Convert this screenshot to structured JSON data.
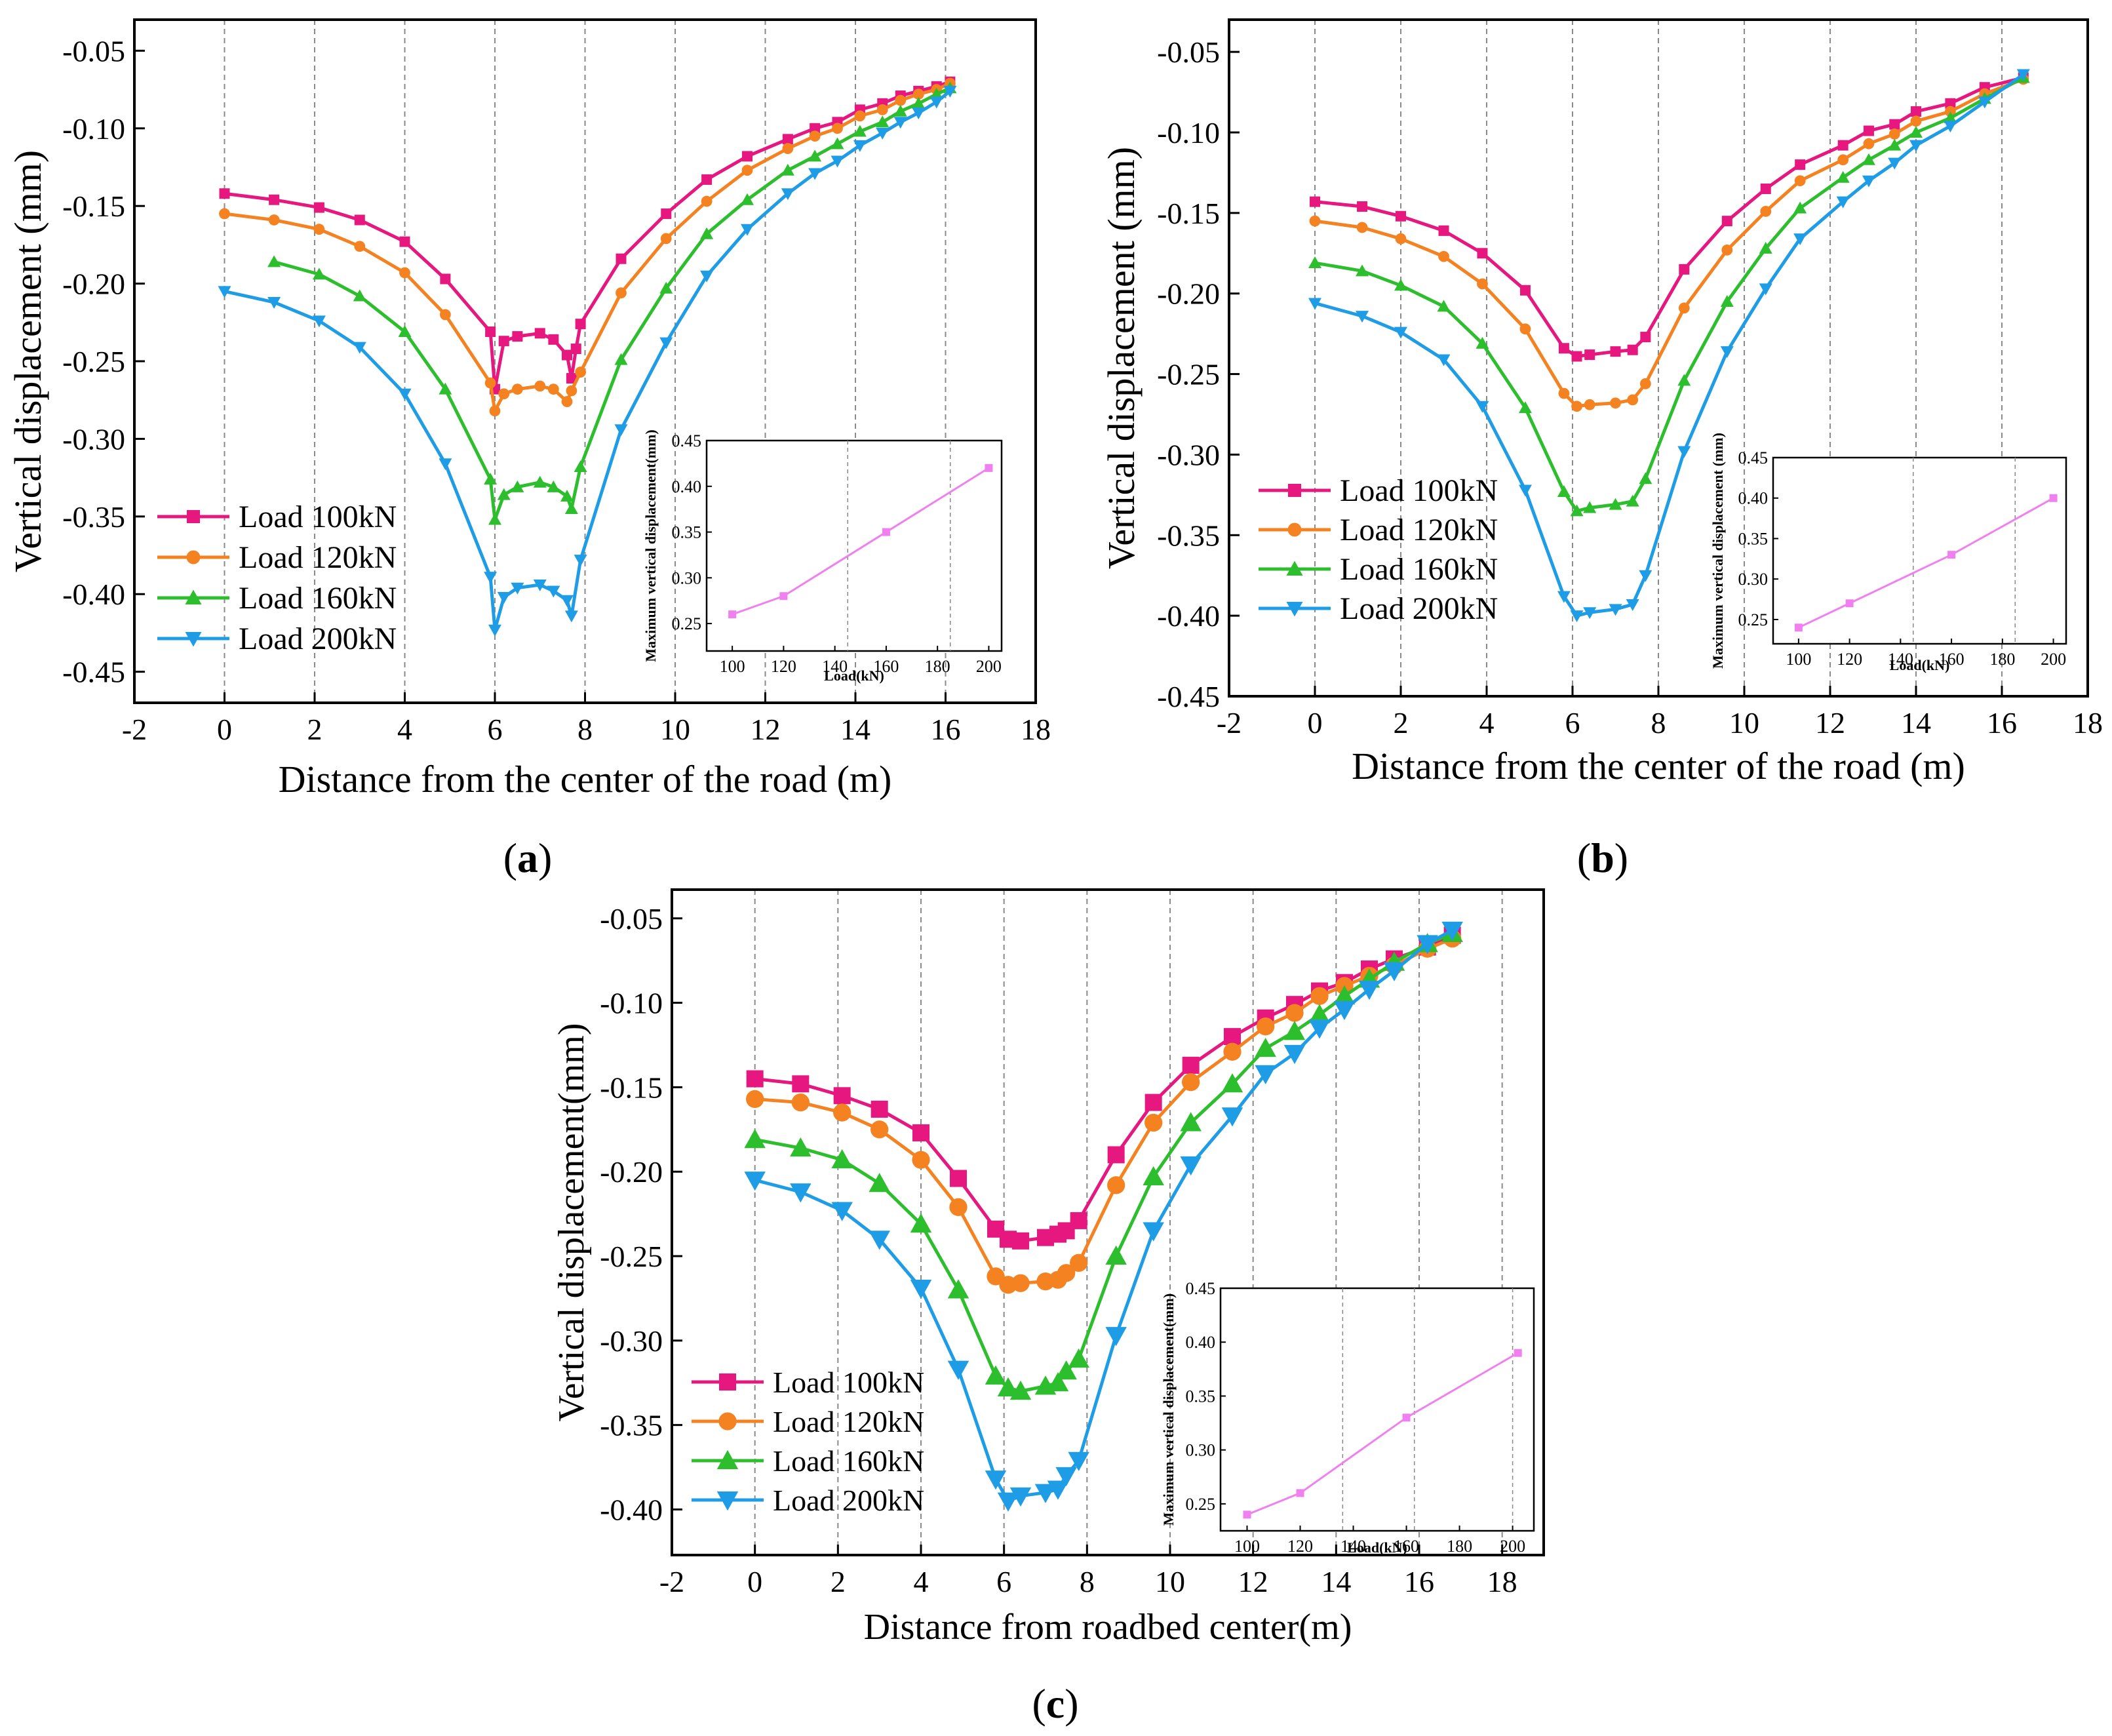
{
  "colors": {
    "Load 100kN": "#E6177F",
    "Load 120kN": "#F58220",
    "Load 160kN": "#2DBE2D",
    "Load 200kN": "#1E9DE6",
    "inset": "#F080F0"
  },
  "panel_labels": [
    "a",
    "b",
    "c"
  ],
  "chart_data": [
    {
      "type": "line",
      "panel": "a",
      "xlabel": "Distance from the center of the road (m)",
      "ylabel": "Vertical displacement (mm)",
      "xlim": [
        -2,
        18
      ],
      "ylim": [
        -0.47,
        -0.03
      ],
      "xticks": [
        -2,
        0,
        2,
        4,
        6,
        8,
        10,
        12,
        14,
        16,
        18
      ],
      "xtick_labels": [
        "-2",
        "0",
        "2",
        "4",
        "6",
        "8",
        "10",
        "12",
        "14",
        "16",
        "18"
      ],
      "yticks": [
        -0.45,
        -0.4,
        -0.35,
        -0.3,
        -0.25,
        -0.2,
        -0.15,
        -0.1,
        -0.05
      ],
      "ytick_labels": [
        "-0.45",
        "-0.40",
        "-0.35",
        "-0.30",
        "-0.25",
        "-0.20",
        "-0.15",
        "-0.10",
        "-0.05"
      ],
      "grid_x": [
        0,
        2,
        4,
        6,
        8,
        10,
        12,
        14,
        16
      ],
      "legend_position": "lower-left",
      "series": [
        {
          "name": "Load 100kN",
          "marker": "square",
          "x": [
            0,
            1.1,
            2.1,
            3,
            4,
            4.9,
            5.9,
            6,
            6.2,
            6.5,
            7,
            7.3,
            7.6,
            7.7,
            7.8,
            7.9,
            8.8,
            9.8,
            10.7,
            11.6,
            12.5,
            13.1,
            13.6,
            14.1,
            14.6,
            15,
            15.4,
            15.8,
            16.1
          ],
          "y": [
            -0.142,
            -0.146,
            -0.151,
            -0.159,
            -0.173,
            -0.197,
            -0.231,
            -0.268,
            -0.237,
            -0.234,
            -0.232,
            -0.236,
            -0.246,
            -0.261,
            -0.242,
            -0.226,
            -0.184,
            -0.155,
            -0.133,
            -0.118,
            -0.107,
            -0.1,
            -0.096,
            -0.088,
            -0.084,
            -0.079,
            -0.076,
            -0.073,
            -0.07
          ]
        },
        {
          "name": "Load 120kN",
          "marker": "circle",
          "x": [
            0,
            1.1,
            2.1,
            3,
            4,
            4.9,
            5.9,
            6,
            6.2,
            6.5,
            7,
            7.3,
            7.6,
            7.7,
            7.9,
            8.8,
            9.8,
            10.7,
            11.6,
            12.5,
            13.1,
            13.6,
            14.1,
            14.6,
            15,
            15.4,
            15.8,
            16.1
          ],
          "y": [
            -0.155,
            -0.159,
            -0.165,
            -0.176,
            -0.193,
            -0.22,
            -0.264,
            -0.282,
            -0.271,
            -0.268,
            -0.266,
            -0.268,
            -0.276,
            -0.269,
            -0.257,
            -0.206,
            -0.171,
            -0.147,
            -0.127,
            -0.113,
            -0.105,
            -0.1,
            -0.092,
            -0.088,
            -0.082,
            -0.078,
            -0.075,
            -0.071
          ]
        },
        {
          "name": "Load 160kN",
          "marker": "triangle-up",
          "x": [
            1.1,
            2.1,
            3,
            4,
            4.9,
            5.9,
            6,
            6.2,
            6.5,
            7,
            7.3,
            7.6,
            7.7,
            7.9,
            8.8,
            9.8,
            10.7,
            11.6,
            12.5,
            13.1,
            13.6,
            14.1,
            14.6,
            15,
            15.4,
            15.8,
            16.1
          ],
          "y": [
            -0.186,
            -0.194,
            -0.208,
            -0.231,
            -0.268,
            -0.326,
            -0.352,
            -0.336,
            -0.331,
            -0.328,
            -0.331,
            -0.337,
            -0.345,
            -0.318,
            -0.249,
            -0.203,
            -0.168,
            -0.146,
            -0.127,
            -0.118,
            -0.11,
            -0.102,
            -0.096,
            -0.089,
            -0.084,
            -0.078,
            -0.074
          ]
        },
        {
          "name": "Load 200kN",
          "marker": "triangle-down",
          "x": [
            0,
            1.1,
            2.1,
            3,
            4,
            4.9,
            5.9,
            6,
            6.2,
            6.5,
            7,
            7.3,
            7.6,
            7.7,
            7.9,
            8.8,
            9.8,
            10.7,
            11.6,
            12.5,
            13.1,
            13.6,
            14.1,
            14.6,
            15,
            15.4,
            15.8,
            16.1
          ],
          "y": [
            -0.205,
            -0.212,
            -0.224,
            -0.241,
            -0.271,
            -0.316,
            -0.389,
            -0.423,
            -0.402,
            -0.396,
            -0.394,
            -0.398,
            -0.404,
            -0.414,
            -0.378,
            -0.294,
            -0.238,
            -0.195,
            -0.165,
            -0.142,
            -0.129,
            -0.121,
            -0.111,
            -0.103,
            -0.096,
            -0.09,
            -0.083,
            -0.076
          ]
        }
      ],
      "inset": {
        "type": "line",
        "xlabel": "Load(kN)",
        "ylabel": "Maximum vertical displacement(mm)",
        "xlim": [
          90,
          205
        ],
        "ylim": [
          0.22,
          0.45
        ],
        "xticks": [
          100,
          120,
          140,
          160,
          180,
          200
        ],
        "xtick_labels": [
          "100",
          "120",
          "140",
          "160",
          "180",
          "200"
        ],
        "yticks": [
          0.25,
          0.3,
          0.35,
          0.4,
          0.45
        ],
        "ytick_labels": [
          "0.25",
          "0.30",
          "0.35",
          "0.40",
          "0.45"
        ],
        "grid_x": [
          145,
          185
        ],
        "x": [
          100,
          120,
          160,
          200
        ],
        "y": [
          0.26,
          0.28,
          0.35,
          0.42
        ]
      }
    },
    {
      "type": "line",
      "panel": "b",
      "xlabel": "Distance from the center of the road (m)",
      "ylabel": "Vertical displacement (mm)",
      "xlim": [
        -2,
        18
      ],
      "ylim": [
        -0.45,
        -0.03
      ],
      "xticks": [
        -2,
        0,
        2,
        4,
        6,
        8,
        10,
        12,
        14,
        16,
        18
      ],
      "xtick_labels": [
        "-2",
        "0",
        "2",
        "4",
        "6",
        "8",
        "10",
        "12",
        "14",
        "16",
        "18"
      ],
      "yticks": [
        -0.45,
        -0.4,
        -0.35,
        -0.3,
        -0.25,
        -0.2,
        -0.15,
        -0.1,
        -0.05
      ],
      "ytick_labels": [
        "-0.45",
        "-0.40",
        "-0.35",
        "-0.30",
        "-0.25",
        "-0.20",
        "-0.15",
        "-0.10",
        "-0.05"
      ],
      "grid_x": [
        0,
        2,
        4,
        6,
        8,
        10,
        12,
        14,
        16
      ],
      "legend_position": "center-left",
      "series": [
        {
          "name": "Load 100kN",
          "marker": "square",
          "x": [
            0,
            1.1,
            2,
            3,
            3.9,
            4.9,
            5.8,
            6.1,
            6.4,
            7,
            7.4,
            7.7,
            8.6,
            9.6,
            10.5,
            11.3,
            12.3,
            12.9,
            13.5,
            14,
            14.8,
            15.6,
            16.5
          ],
          "y": [
            -0.143,
            -0.146,
            -0.152,
            -0.161,
            -0.175,
            -0.198,
            -0.234,
            -0.239,
            -0.238,
            -0.236,
            -0.235,
            -0.227,
            -0.185,
            -0.155,
            -0.135,
            -0.12,
            -0.108,
            -0.099,
            -0.095,
            -0.087,
            -0.082,
            -0.072,
            -0.066
          ]
        },
        {
          "name": "Load 120kN",
          "marker": "circle",
          "x": [
            0,
            1.1,
            2,
            3,
            3.9,
            4.9,
            5.8,
            6.1,
            6.4,
            7,
            7.4,
            7.7,
            8.6,
            9.6,
            10.5,
            11.3,
            12.3,
            12.9,
            13.5,
            14,
            14.8,
            15.6,
            16.5
          ],
          "y": [
            -0.155,
            -0.159,
            -0.166,
            -0.177,
            -0.194,
            -0.222,
            -0.262,
            -0.27,
            -0.269,
            -0.268,
            -0.266,
            -0.256,
            -0.209,
            -0.173,
            -0.149,
            -0.13,
            -0.117,
            -0.107,
            -0.101,
            -0.093,
            -0.087,
            -0.076,
            -0.067
          ]
        },
        {
          "name": "Load 160kN",
          "marker": "triangle-up",
          "x": [
            0,
            1.1,
            2,
            3,
            3.9,
            4.9,
            5.8,
            6.1,
            6.4,
            7,
            7.4,
            7.7,
            8.6,
            9.6,
            10.5,
            11.3,
            12.3,
            12.9,
            13.5,
            14,
            14.8,
            15.6,
            16.5
          ],
          "y": [
            -0.181,
            -0.186,
            -0.195,
            -0.208,
            -0.231,
            -0.271,
            -0.323,
            -0.335,
            -0.333,
            -0.331,
            -0.329,
            -0.315,
            -0.254,
            -0.205,
            -0.172,
            -0.147,
            -0.128,
            -0.117,
            -0.108,
            -0.1,
            -0.091,
            -0.079,
            -0.066
          ]
        },
        {
          "name": "Load 200kN",
          "marker": "triangle-down",
          "x": [
            0,
            1.1,
            2,
            3,
            3.9,
            4.9,
            5.8,
            6.1,
            6.4,
            7,
            7.4,
            7.7,
            8.6,
            9.6,
            10.5,
            11.3,
            12.3,
            12.9,
            13.5,
            14,
            14.8,
            15.6,
            16.5
          ],
          "y": [
            -0.206,
            -0.214,
            -0.224,
            -0.241,
            -0.27,
            -0.322,
            -0.388,
            -0.4,
            -0.398,
            -0.396,
            -0.393,
            -0.375,
            -0.298,
            -0.236,
            -0.197,
            -0.166,
            -0.143,
            -0.13,
            -0.119,
            -0.108,
            -0.096,
            -0.081,
            -0.064
          ]
        }
      ],
      "inset": {
        "type": "line",
        "xlabel": "Load(kN)",
        "ylabel": "Maximum vertical displacement (mm)",
        "xlim": [
          90,
          205
        ],
        "ylim": [
          0.22,
          0.45
        ],
        "xticks": [
          100,
          120,
          140,
          160,
          180,
          200
        ],
        "xtick_labels": [
          "100",
          "120",
          "140",
          "160",
          "180",
          "200"
        ],
        "yticks": [
          0.25,
          0.3,
          0.35,
          0.4,
          0.45
        ],
        "ytick_labels": [
          "0.25",
          "0.30",
          "0.35",
          "0.40",
          "0.45"
        ],
        "grid_x": [
          145,
          185
        ],
        "x": [
          100,
          120,
          160,
          200
        ],
        "y": [
          0.24,
          0.27,
          0.33,
          0.4
        ]
      }
    },
    {
      "type": "line",
      "panel": "c",
      "xlabel": "Distance from roadbed center(m)",
      "ylabel": "Vertical displacement(mm)",
      "xlim": [
        -2,
        19
      ],
      "ylim": [
        -0.427,
        -0.033
      ],
      "xticks": [
        -2,
        0,
        2,
        4,
        6,
        8,
        10,
        12,
        14,
        16,
        18
      ],
      "xtick_labels": [
        "-2",
        "0",
        "2",
        "4",
        "6",
        "8",
        "10",
        "12",
        "14",
        "16",
        "18"
      ],
      "yticks": [
        -0.4,
        -0.35,
        -0.3,
        -0.25,
        -0.2,
        -0.15,
        -0.1,
        -0.05
      ],
      "ytick_labels": [
        "-0.40",
        "-0.35",
        "-0.30",
        "-0.25",
        "-0.20",
        "-0.15",
        "-0.10",
        "-0.05"
      ],
      "grid_x": [
        0,
        2,
        4,
        6,
        8,
        10,
        12,
        14,
        16,
        18
      ],
      "legend_position": "lower-left",
      "series": [
        {
          "name": "Load 100kN",
          "marker": "square",
          "x": [
            0,
            1.1,
            2.1,
            3,
            4,
            4.9,
            5.8,
            6.1,
            6.4,
            7,
            7.3,
            7.5,
            7.8,
            8.7,
            9.6,
            10.5,
            11.5,
            12.3,
            13,
            13.6,
            14.2,
            14.8,
            15.4,
            16.2,
            16.8
          ],
          "y": [
            -0.145,
            -0.148,
            -0.155,
            -0.163,
            -0.177,
            -0.204,
            -0.234,
            -0.24,
            -0.241,
            -0.239,
            -0.237,
            -0.235,
            -0.229,
            -0.19,
            -0.159,
            -0.137,
            -0.12,
            -0.109,
            -0.101,
            -0.093,
            -0.088,
            -0.08,
            -0.074,
            -0.067,
            -0.06
          ]
        },
        {
          "name": "Load 120kN",
          "marker": "circle",
          "x": [
            0,
            1.1,
            2.1,
            3,
            4,
            4.9,
            5.8,
            6.1,
            6.4,
            7,
            7.3,
            7.5,
            7.8,
            8.7,
            9.6,
            10.5,
            11.5,
            12.3,
            13,
            13.6,
            14.2,
            14.8,
            15.4,
            16.2,
            16.8
          ],
          "y": [
            -0.157,
            -0.159,
            -0.165,
            -0.175,
            -0.193,
            -0.221,
            -0.262,
            -0.267,
            -0.266,
            -0.265,
            -0.264,
            -0.26,
            -0.254,
            -0.208,
            -0.171,
            -0.147,
            -0.129,
            -0.114,
            -0.106,
            -0.096,
            -0.09,
            -0.084,
            -0.078,
            -0.068,
            -0.062
          ]
        },
        {
          "name": "Load 160kN",
          "marker": "triangle-up",
          "x": [
            0,
            1.1,
            2.1,
            3,
            4,
            4.9,
            5.8,
            6.1,
            6.4,
            7,
            7.3,
            7.5,
            7.8,
            8.7,
            9.6,
            10.5,
            11.5,
            12.3,
            13,
            13.6,
            14.2,
            14.8,
            15.4,
            16.2,
            16.8
          ],
          "y": [
            -0.181,
            -0.186,
            -0.193,
            -0.207,
            -0.231,
            -0.27,
            -0.321,
            -0.328,
            -0.33,
            -0.327,
            -0.325,
            -0.318,
            -0.311,
            -0.25,
            -0.203,
            -0.171,
            -0.148,
            -0.127,
            -0.117,
            -0.107,
            -0.096,
            -0.086,
            -0.076,
            -0.065,
            -0.059
          ]
        },
        {
          "name": "Load 200kN",
          "marker": "triangle-down",
          "x": [
            0,
            1.1,
            2.1,
            3,
            4,
            4.9,
            5.8,
            6.1,
            6.4,
            7,
            7.3,
            7.5,
            7.8,
            8.7,
            9.6,
            10.5,
            11.5,
            12.3,
            13,
            13.6,
            14.2,
            14.8,
            15.4,
            16.2,
            16.8
          ],
          "y": [
            -0.205,
            -0.212,
            -0.223,
            -0.24,
            -0.269,
            -0.317,
            -0.382,
            -0.395,
            -0.392,
            -0.39,
            -0.388,
            -0.38,
            -0.371,
            -0.297,
            -0.235,
            -0.196,
            -0.167,
            -0.142,
            -0.13,
            -0.115,
            -0.104,
            -0.092,
            -0.081,
            -0.065,
            -0.057
          ]
        }
      ],
      "inset": {
        "type": "line",
        "xlabel": "Load(kN)",
        "ylabel": "Maximum vertical displacement(mm)",
        "xlim": [
          90,
          208
        ],
        "ylim": [
          0.225,
          0.45
        ],
        "xticks": [
          100,
          120,
          140,
          160,
          180,
          200
        ],
        "xtick_labels": [
          "100",
          "120",
          "140",
          "160",
          "180",
          "200"
        ],
        "yticks": [
          0.25,
          0.3,
          0.35,
          0.4,
          0.45
        ],
        "ytick_labels": [
          "0.25",
          "0.30",
          "0.35",
          "0.40",
          "0.45"
        ],
        "grid_x": [
          136,
          163,
          200
        ],
        "x": [
          100,
          120,
          160,
          202
        ],
        "y": [
          0.24,
          0.26,
          0.33,
          0.39
        ]
      }
    }
  ]
}
